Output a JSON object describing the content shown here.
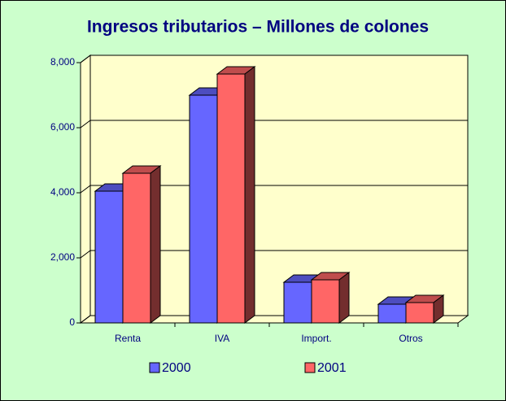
{
  "chart_data": {
    "type": "bar",
    "title": "Ingresos tributarios – Millones de colones",
    "categories": [
      "Renta",
      "IVA",
      "Import.",
      "Otros"
    ],
    "series": [
      {
        "name": "2000",
        "color": "#6666ff",
        "values": [
          4050,
          7000,
          1250,
          575
        ]
      },
      {
        "name": "2001",
        "color": "#ff6666",
        "values": [
          4600,
          7650,
          1325,
          625
        ]
      }
    ],
    "ylim": [
      0,
      8000
    ],
    "yticks": [
      0,
      {
        "value": 2000,
        "label": "2,000"
      },
      {
        "value": 4000,
        "label": "4,000"
      },
      {
        "value": 6000,
        "label": "6,000"
      },
      {
        "value": 8000,
        "label": "8,000"
      }
    ],
    "grid": true,
    "legend": "bottom"
  }
}
